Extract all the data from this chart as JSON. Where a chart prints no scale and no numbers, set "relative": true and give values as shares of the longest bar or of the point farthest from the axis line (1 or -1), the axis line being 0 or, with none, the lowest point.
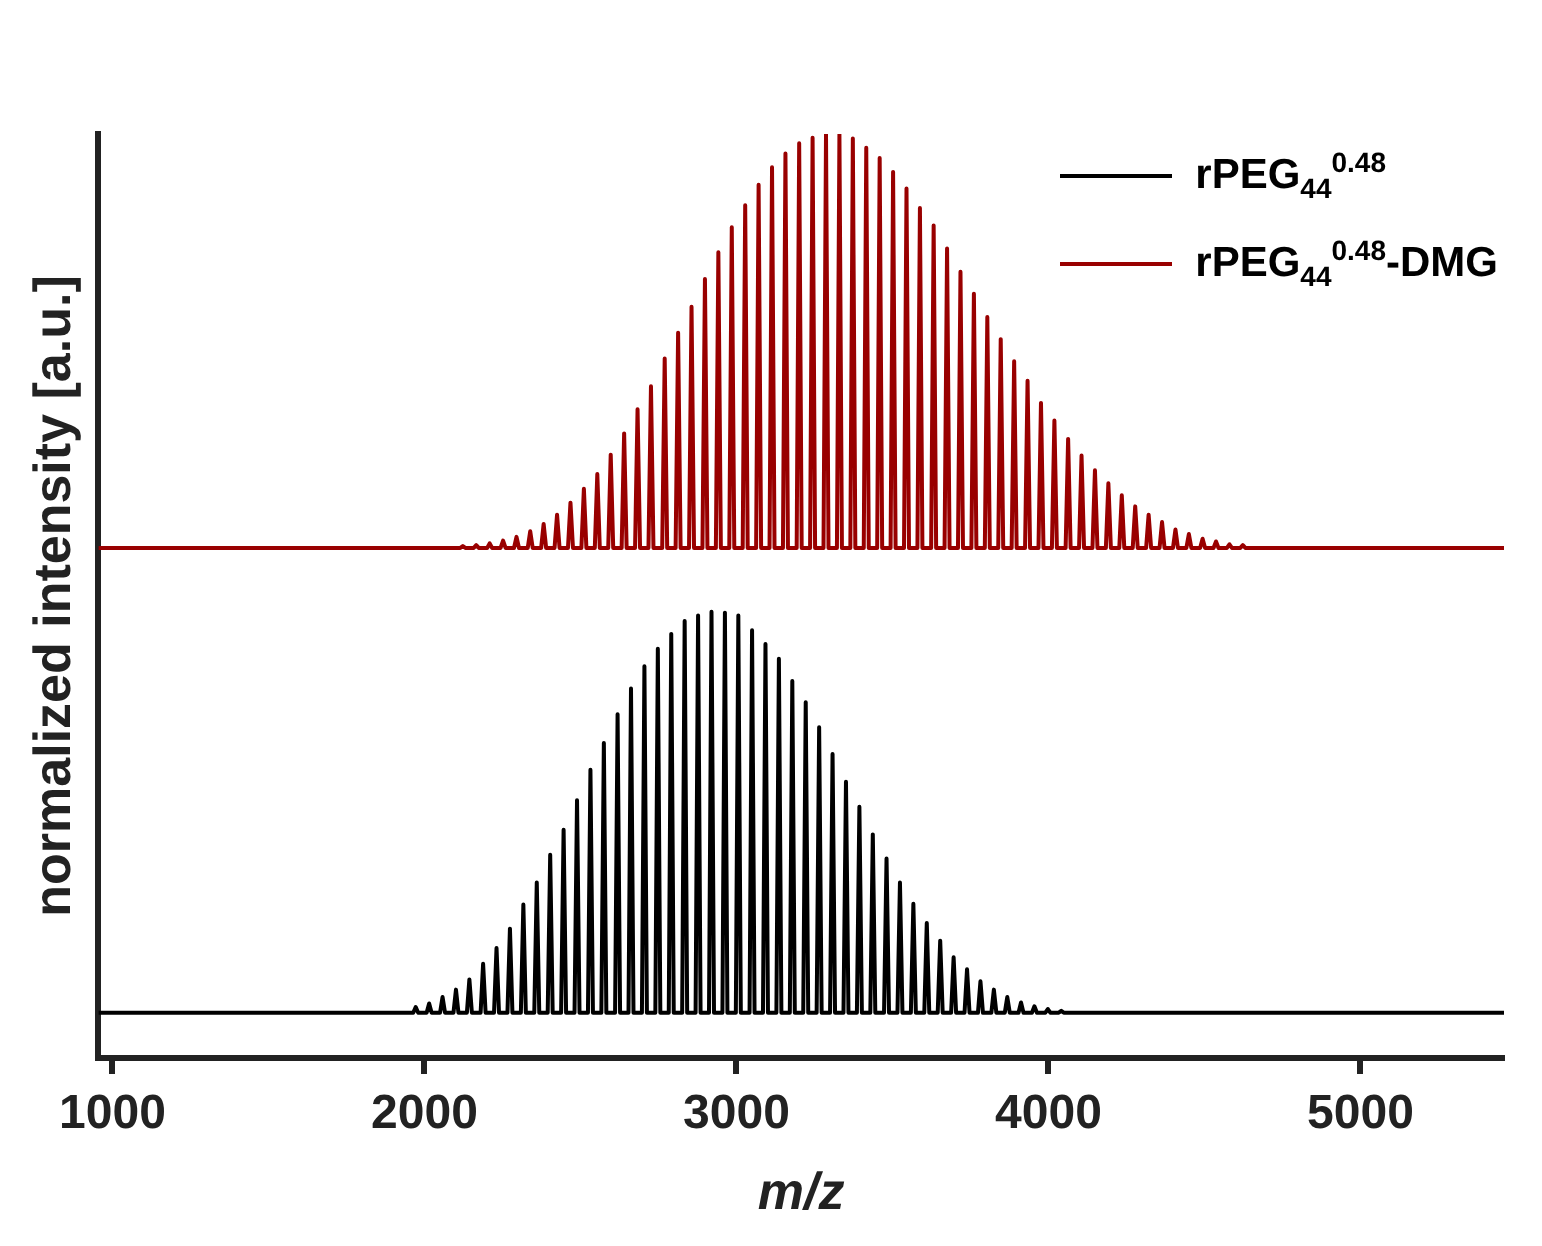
{
  "chart_data": {
    "type": "line",
    "relative": true,
    "xlabel": "m/z",
    "ylabel": "normalized intensity [a.u.]",
    "xlim": [
      955,
      5460
    ],
    "xticks": [
      1000,
      2000,
      3000,
      4000,
      5000
    ],
    "grid": false,
    "legend": "top right",
    "marker": "none",
    "line_style": "solid",
    "tick_labels": "x",
    "series": [
      {
        "name": "rPEG$_{44}$$^{0.48}$",
        "color": "#000000",
        "x": [
          955,
          1964,
          1972,
          1980,
          2007,
          2015,
          2023,
          2050,
          2058,
          2066,
          2093,
          2101,
          2109,
          2136,
          2144,
          2152,
          2180,
          2188,
          2196,
          2223,
          2231,
          2239,
          2266,
          2274,
          2282,
          2309,
          2317,
          2325,
          2352,
          2360,
          2368,
          2395,
          2403,
          2411,
          2438,
          2446,
          2454,
          2481,
          2489,
          2497,
          2524,
          2532,
          2540,
          2567,
          2575,
          2583,
          2611,
          2619,
          2627,
          2654,
          2662,
          2670,
          2697,
          2705,
          2713,
          2740,
          2748,
          2756,
          2783,
          2791,
          2799,
          2826,
          2834,
          2842,
          2869,
          2877,
          2885,
          2912,
          2920,
          2928,
          2955,
          2963,
          2971,
          2998,
          3006,
          3014,
          3042,
          3050,
          3058,
          3085,
          3093,
          3101,
          3128,
          3136,
          3144,
          3171,
          3179,
          3187,
          3214,
          3222,
          3230,
          3257,
          3265,
          3273,
          3300,
          3308,
          3316,
          3343,
          3351,
          3359,
          3386,
          3394,
          3402,
          3429,
          3437,
          3445,
          3473,
          3481,
          3489,
          3516,
          3524,
          3532,
          3559,
          3567,
          3575,
          3602,
          3610,
          3618,
          3645,
          3653,
          3661,
          3688,
          3696,
          3704,
          3731,
          3739,
          3747,
          3774,
          3782,
          3790,
          3817,
          3825,
          3833,
          3860,
          3868,
          3876,
          3904,
          3912,
          3920,
          3947,
          3955,
          3963,
          3990,
          3998,
          4006,
          4033,
          4041,
          4049,
          5460
        ],
        "values": [
          0.049,
          0.049,
          0.055,
          0.049,
          0.049,
          0.059,
          0.049,
          0.049,
          0.066,
          0.049,
          0.049,
          0.074,
          0.049,
          0.049,
          0.085,
          0.049,
          0.049,
          0.102,
          0.049,
          0.049,
          0.119,
          0.049,
          0.049,
          0.14,
          0.049,
          0.049,
          0.166,
          0.049,
          0.049,
          0.19,
          0.049,
          0.049,
          0.22,
          0.049,
          0.049,
          0.247,
          0.049,
          0.049,
          0.279,
          0.049,
          0.049,
          0.312,
          0.049,
          0.049,
          0.341,
          0.049,
          0.049,
          0.372,
          0.049,
          0.049,
          0.4,
          0.049,
          0.049,
          0.424,
          0.049,
          0.049,
          0.443,
          0.049,
          0.049,
          0.459,
          0.049,
          0.049,
          0.473,
          0.049,
          0.049,
          0.479,
          0.049,
          0.049,
          0.483,
          0.049,
          0.049,
          0.482,
          0.049,
          0.049,
          0.479,
          0.049,
          0.049,
          0.463,
          0.049,
          0.049,
          0.448,
          0.049,
          0.049,
          0.432,
          0.049,
          0.049,
          0.408,
          0.049,
          0.049,
          0.385,
          0.049,
          0.049,
          0.358,
          0.049,
          0.049,
          0.329,
          0.049,
          0.049,
          0.299,
          0.049,
          0.049,
          0.272,
          0.049,
          0.049,
          0.242,
          0.049,
          0.049,
          0.216,
          0.049,
          0.049,
          0.19,
          0.049,
          0.049,
          0.167,
          0.049,
          0.049,
          0.146,
          0.049,
          0.049,
          0.127,
          0.049,
          0.049,
          0.109,
          0.049,
          0.049,
          0.096,
          0.049,
          0.049,
          0.083,
          0.049,
          0.049,
          0.074,
          0.049,
          0.049,
          0.066,
          0.049,
          0.049,
          0.06,
          0.049,
          0.049,
          0.056,
          0.049,
          0.049,
          0.053,
          0.049,
          0.049,
          0.051,
          0.049,
          0.049
        ]
      },
      {
        "name": "rPEG$_{44}$$^{0.48}$-DMG",
        "color": "#990000",
        "x": [
          955,
          2115,
          2123,
          2131,
          2158,
          2166,
          2174,
          2201,
          2209,
          2217,
          2244,
          2252,
          2260,
          2287,
          2295,
          2303,
          2331,
          2339,
          2347,
          2374,
          2382,
          2390,
          2417,
          2425,
          2433,
          2460,
          2468,
          2476,
          2503,
          2511,
          2519,
          2546,
          2554,
          2562,
          2589,
          2597,
          2605,
          2632,
          2640,
          2648,
          2675,
          2683,
          2691,
          2718,
          2726,
          2734,
          2762,
          2770,
          2778,
          2805,
          2813,
          2821,
          2848,
          2856,
          2864,
          2891,
          2899,
          2907,
          2934,
          2942,
          2950,
          2977,
          2985,
          2993,
          3020,
          3028,
          3036,
          3063,
          3071,
          3079,
          3106,
          3114,
          3122,
          3149,
          3157,
          3165,
          3193,
          3201,
          3209,
          3236,
          3244,
          3252,
          3279,
          3287,
          3295,
          3322,
          3330,
          3338,
          3365,
          3373,
          3381,
          3408,
          3416,
          3424,
          3451,
          3459,
          3467,
          3494,
          3502,
          3510,
          3537,
          3545,
          3553,
          3580,
          3588,
          3596,
          3624,
          3632,
          3640,
          3667,
          3675,
          3683,
          3710,
          3718,
          3726,
          3753,
          3761,
          3769,
          3796,
          3804,
          3812,
          3839,
          3847,
          3855,
          3882,
          3890,
          3898,
          3925,
          3933,
          3941,
          3968,
          3976,
          3984,
          4011,
          4019,
          4027,
          4055,
          4063,
          4071,
          4098,
          4106,
          4114,
          4141,
          4149,
          4157,
          4184,
          4192,
          4200,
          4227,
          4235,
          4243,
          4270,
          4278,
          4286,
          4313,
          4321,
          4329,
          4356,
          4364,
          4372,
          4399,
          4407,
          4415,
          4442,
          4450,
          4458,
          4486,
          4494,
          4502,
          4529,
          4537,
          4545,
          4572,
          4580,
          4588,
          4615,
          4623,
          4631,
          5460
        ],
        "values": [
          0.552,
          0.552,
          0.554,
          0.552,
          0.552,
          0.555,
          0.552,
          0.552,
          0.557,
          0.552,
          0.552,
          0.56,
          0.552,
          0.552,
          0.564,
          0.552,
          0.552,
          0.57,
          0.552,
          0.552,
          0.578,
          0.552,
          0.552,
          0.588,
          0.552,
          0.552,
          0.601,
          0.552,
          0.552,
          0.616,
          0.552,
          0.552,
          0.632,
          0.552,
          0.552,
          0.653,
          0.552,
          0.552,
          0.676,
          0.552,
          0.552,
          0.702,
          0.552,
          0.552,
          0.727,
          0.552,
          0.552,
          0.757,
          0.552,
          0.552,
          0.785,
          0.552,
          0.552,
          0.813,
          0.552,
          0.552,
          0.843,
          0.552,
          0.552,
          0.872,
          0.552,
          0.552,
          0.899,
          0.552,
          0.552,
          0.923,
          0.552,
          0.552,
          0.945,
          0.552,
          0.552,
          0.964,
          0.552,
          0.552,
          0.979,
          0.552,
          0.552,
          0.99,
          0.552,
          0.552,
          0.996,
          0.552,
          0.552,
          1,
          0.552,
          0.552,
          1,
          0.552,
          0.552,
          0.995,
          0.552,
          0.552,
          0.985,
          0.552,
          0.552,
          0.974,
          0.552,
          0.552,
          0.959,
          0.552,
          0.552,
          0.941,
          0.552,
          0.552,
          0.92,
          0.552,
          0.552,
          0.901,
          0.552,
          0.552,
          0.876,
          0.552,
          0.552,
          0.851,
          0.552,
          0.552,
          0.827,
          0.552,
          0.552,
          0.802,
          0.552,
          0.552,
          0.778,
          0.552,
          0.552,
          0.754,
          0.552,
          0.552,
          0.733,
          0.552,
          0.552,
          0.709,
          0.552,
          0.552,
          0.69,
          0.552,
          0.552,
          0.67,
          0.552,
          0.552,
          0.652,
          0.552,
          0.552,
          0.636,
          0.552,
          0.552,
          0.622,
          0.552,
          0.552,
          0.609,
          0.552,
          0.552,
          0.597,
          0.552,
          0.552,
          0.588,
          0.552,
          0.552,
          0.58,
          0.552,
          0.552,
          0.572,
          0.552,
          0.552,
          0.567,
          0.552,
          0.552,
          0.562,
          0.552,
          0.552,
          0.559,
          0.552,
          0.552,
          0.556,
          0.552,
          0.552,
          0.555,
          0.552,
          0.552
        ]
      }
    ]
  }
}
